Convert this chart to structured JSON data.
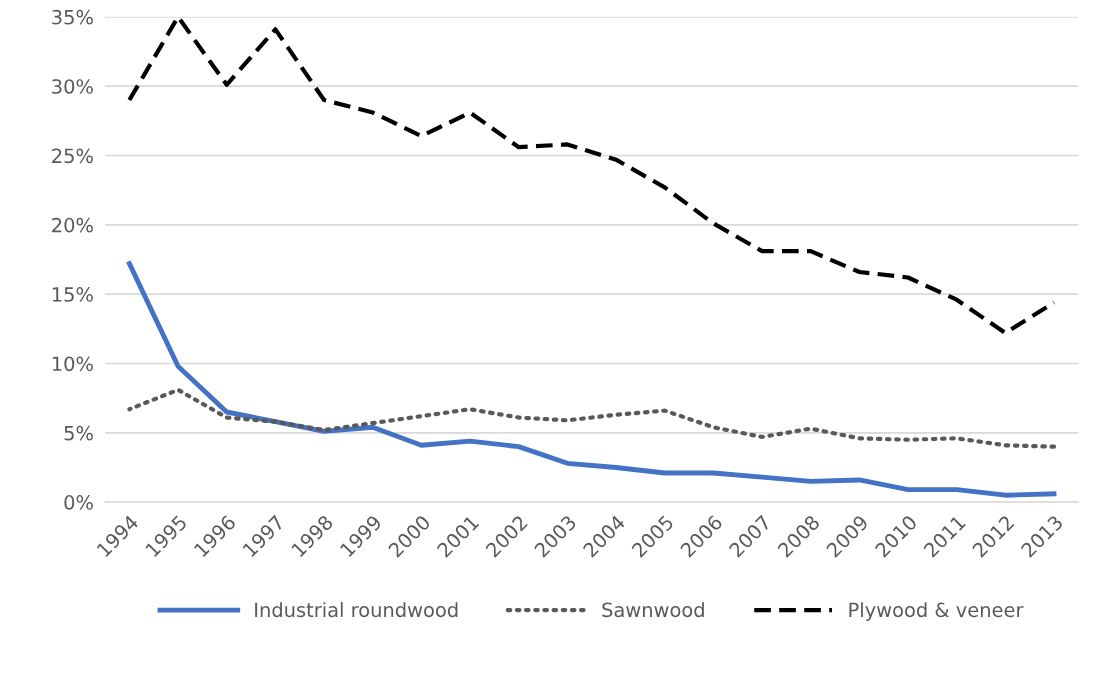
{
  "chart_data": {
    "type": "line",
    "categories": [
      "1994",
      "1995",
      "1996",
      "1997",
      "1998",
      "1999",
      "2000",
      "2001",
      "2002",
      "2003",
      "2004",
      "2005",
      "2006",
      "2007",
      "2008",
      "2009",
      "2010",
      "2011",
      "2012",
      "2013"
    ],
    "series": [
      {
        "name": "Industrial roundwood",
        "color": "#4472c4",
        "line_style": "solid",
        "values": [
          17.2,
          9.8,
          6.5,
          5.8,
          5.1,
          5.4,
          4.1,
          4.4,
          4.0,
          2.8,
          2.5,
          2.1,
          2.1,
          1.8,
          1.5,
          1.6,
          0.9,
          0.9,
          0.5,
          0.6
        ]
      },
      {
        "name": "Sawnwood",
        "color": "#595959",
        "line_style": "dotted",
        "values": [
          6.7,
          8.1,
          6.1,
          5.8,
          5.2,
          5.7,
          6.2,
          6.7,
          6.1,
          5.9,
          6.3,
          6.6,
          5.4,
          4.7,
          5.3,
          4.6,
          4.5,
          4.6,
          4.1,
          4.0
        ]
      },
      {
        "name": "Plywood & veneer",
        "color": "#000000",
        "line_style": "dashed",
        "values": [
          29.0,
          35.0,
          30.1,
          34.1,
          29.0,
          28.1,
          26.4,
          28.1,
          25.6,
          25.8,
          24.7,
          22.7,
          20.1,
          18.1,
          18.1,
          16.6,
          16.2,
          14.6,
          12.2,
          14.4
        ]
      }
    ],
    "ylim": [
      0,
      35
    ],
    "yticks": [
      {
        "value": 0,
        "label": "0%"
      },
      {
        "value": 5,
        "label": "5%"
      },
      {
        "value": 10,
        "label": "10%"
      },
      {
        "value": 15,
        "label": "15%"
      },
      {
        "value": 20,
        "label": "20%"
      },
      {
        "value": 25,
        "label": "25%"
      },
      {
        "value": 30,
        "label": "30%"
      },
      {
        "value": 35,
        "label": "35%"
      }
    ],
    "grid": "y",
    "legend": "bottom",
    "marker": "none"
  }
}
